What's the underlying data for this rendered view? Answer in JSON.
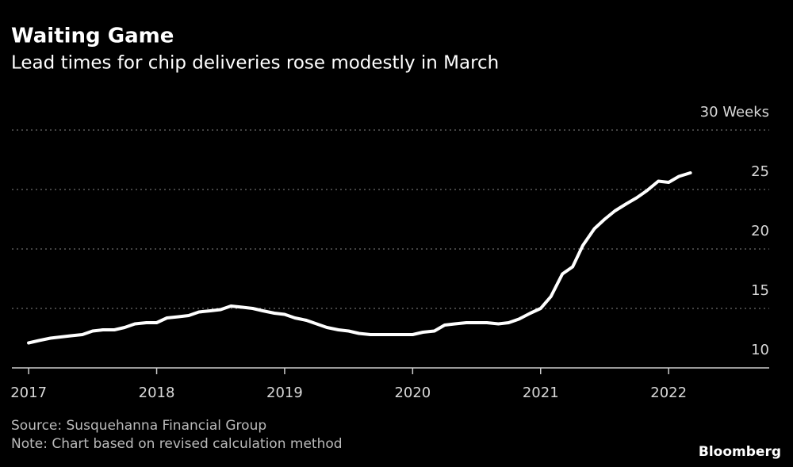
{
  "chart_data": {
    "type": "line",
    "title": "Waiting Game",
    "subtitle": "Lead times for chip deliveries rose modestly in March",
    "source": "Source: Susquehanna Financial Group",
    "note": "Note: Chart based on revised calculation method",
    "brand": "Bloomberg",
    "x": [
      2017.0,
      2017.08,
      2017.17,
      2017.25,
      2017.33,
      2017.42,
      2017.5,
      2017.58,
      2017.67,
      2017.75,
      2017.83,
      2017.92,
      2018.0,
      2018.08,
      2018.17,
      2018.25,
      2018.33,
      2018.42,
      2018.5,
      2018.58,
      2018.67,
      2018.75,
      2018.83,
      2018.92,
      2019.0,
      2019.08,
      2019.17,
      2019.25,
      2019.33,
      2019.42,
      2019.5,
      2019.58,
      2019.67,
      2019.75,
      2019.83,
      2019.92,
      2020.0,
      2020.08,
      2020.17,
      2020.25,
      2020.33,
      2020.42,
      2020.5,
      2020.58,
      2020.67,
      2020.75,
      2020.83,
      2020.92,
      2021.0,
      2021.08,
      2021.17,
      2021.25,
      2021.33,
      2021.42,
      2021.5,
      2021.58,
      2021.67,
      2021.75,
      2021.83,
      2021.92,
      2022.0,
      2022.08,
      2022.17
    ],
    "series": [
      {
        "color": "#ffffff",
        "values": [
          12.1,
          12.3,
          12.5,
          12.6,
          12.7,
          12.8,
          13.1,
          13.2,
          13.2,
          13.4,
          13.7,
          13.8,
          13.8,
          14.2,
          14.3,
          14.4,
          14.7,
          14.8,
          14.9,
          15.2,
          15.1,
          15.0,
          14.8,
          14.6,
          14.5,
          14.2,
          14.0,
          13.7,
          13.4,
          13.2,
          13.1,
          12.9,
          12.8,
          12.8,
          12.8,
          12.8,
          12.8,
          13.0,
          13.1,
          13.6,
          13.7,
          13.8,
          13.8,
          13.8,
          13.7,
          13.8,
          14.1,
          14.6,
          15.0,
          16.0,
          17.9,
          18.5,
          20.3,
          21.7,
          22.5,
          23.2,
          23.8,
          24.3,
          24.9,
          25.7,
          25.6,
          26.1,
          26.4
        ]
      }
    ],
    "xlim": [
      2016.9,
      2022.6
    ],
    "xticks": [
      2017,
      2018,
      2019,
      2020,
      2021,
      2022
    ],
    "ylim": [
      10,
      30
    ],
    "yticks": [
      10,
      15,
      20,
      25,
      {
        "value": 30,
        "label": "30 Weeks"
      }
    ],
    "grid": true
  }
}
